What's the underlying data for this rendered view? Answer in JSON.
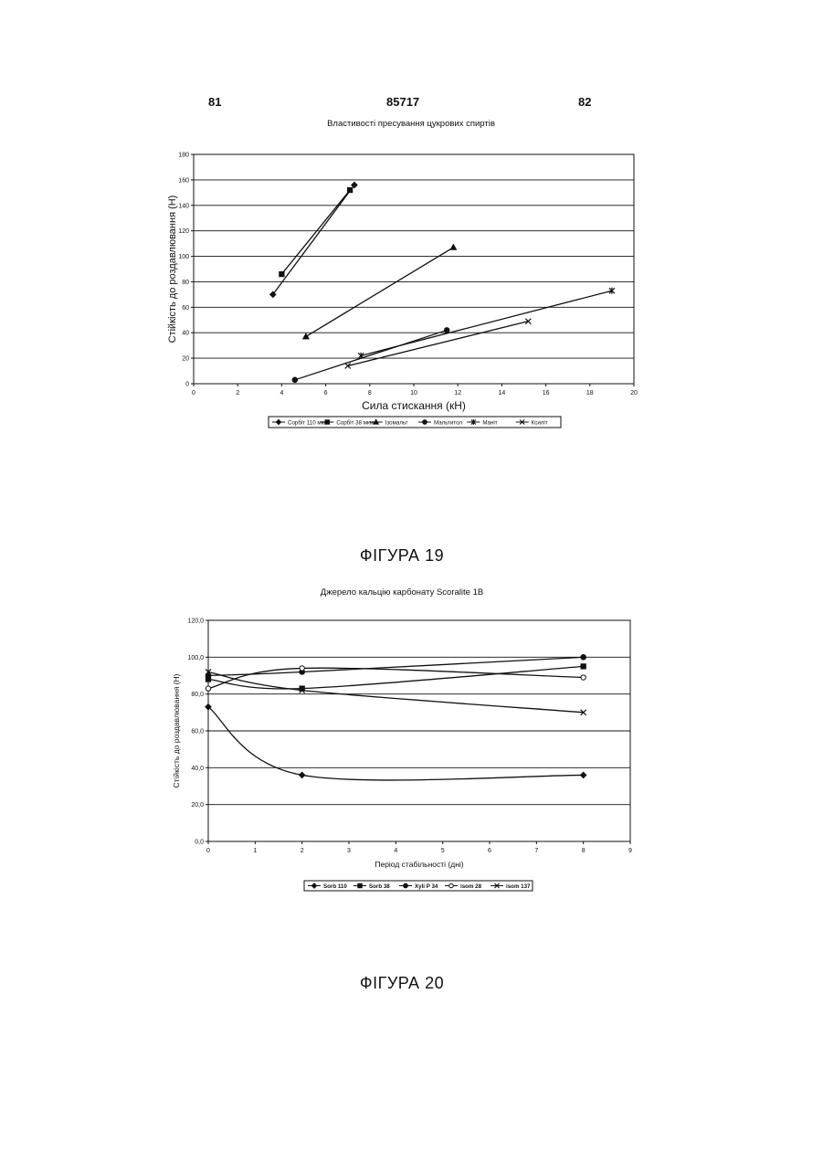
{
  "header": {
    "left": "81",
    "center": "85717",
    "right": "82"
  },
  "figures": [
    {
      "label": "ФІГУРА 19"
    },
    {
      "label": "ФІГУРА 20"
    }
  ],
  "chart_data": [
    {
      "type": "line",
      "title": "Властивості пресування цукрових спиртів",
      "xlabel": "Сила стискання (кН)",
      "ylabel": "Стійкість до роздавлювання (Н)",
      "xlim": [
        0,
        20
      ],
      "ylim": [
        0,
        180
      ],
      "x_ticks": [
        0,
        2,
        4,
        6,
        8,
        10,
        12,
        14,
        16,
        18,
        20
      ],
      "y_ticks": [
        0,
        20,
        40,
        60,
        80,
        100,
        120,
        140,
        160,
        180
      ],
      "grid": "horizontal",
      "legend_position": "bottom",
      "series": [
        {
          "name": "Сорбіт 110 мкм",
          "marker": "diamond",
          "points": [
            [
              3.6,
              70
            ],
            [
              7.3,
              156
            ]
          ]
        },
        {
          "name": "Сорбіт 38 мкм",
          "marker": "square",
          "points": [
            [
              4.0,
              86
            ],
            [
              7.1,
              152
            ]
          ]
        },
        {
          "name": "Ізомальт",
          "marker": "triangle",
          "points": [
            [
              5.1,
              37
            ],
            [
              11.8,
              107
            ]
          ]
        },
        {
          "name": "Мальтитол",
          "marker": "circle",
          "points": [
            [
              4.6,
              3
            ],
            [
              11.5,
              42
            ]
          ]
        },
        {
          "name": "Маніт",
          "marker": "star",
          "points": [
            [
              7.6,
              22
            ],
            [
              19.0,
              73
            ]
          ]
        },
        {
          "name": "Ксиліт",
          "marker": "x",
          "points": [
            [
              7.0,
              14
            ],
            [
              15.2,
              49
            ]
          ]
        }
      ]
    },
    {
      "type": "line",
      "title": "Джерело кальцію карбонату  Scoralite 1B",
      "xlabel": "Період стабільності (дні)",
      "ylabel": "Стійкість до роздавлювання (Н)",
      "xlim": [
        0,
        9
      ],
      "ylim": [
        0,
        120
      ],
      "x_ticks": [
        0,
        1,
        2,
        3,
        4,
        5,
        6,
        7,
        8,
        9
      ],
      "y_ticks": [
        "0,0",
        "20,0",
        "40,0",
        "60,0",
        "80,0",
        "100,0",
        "120,0"
      ],
      "grid": "horizontal",
      "legend_position": "bottom",
      "series": [
        {
          "name": "Sorb 110",
          "marker": "diamond",
          "points": [
            [
              0,
              73
            ],
            [
              2,
              36
            ],
            [
              8,
              36
            ]
          ]
        },
        {
          "name": "Sorb 38",
          "marker": "square",
          "points": [
            [
              0,
              88
            ],
            [
              2,
              83
            ],
            [
              8,
              95
            ]
          ]
        },
        {
          "name": "Xyli P 34",
          "marker": "circle",
          "points": [
            [
              0,
              90
            ],
            [
              2,
              92
            ],
            [
              8,
              100
            ]
          ]
        },
        {
          "name": "isom 28",
          "marker": "open-circle",
          "points": [
            [
              0,
              83
            ],
            [
              2,
              94
            ],
            [
              8,
              89
            ]
          ]
        },
        {
          "name": "isom 137",
          "marker": "x",
          "points": [
            [
              0,
              92
            ],
            [
              2,
              82
            ],
            [
              8,
              70
            ]
          ]
        }
      ]
    }
  ]
}
